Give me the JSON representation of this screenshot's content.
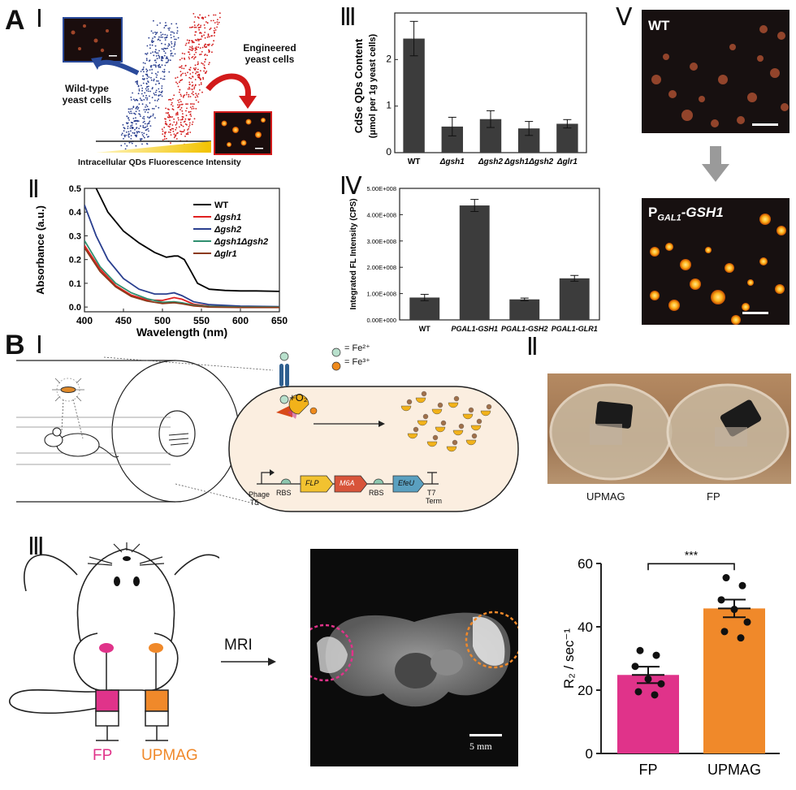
{
  "panels": {
    "A": "A",
    "B": "B",
    "A_I": "Ⅰ",
    "A_II": "Ⅱ",
    "A_III": "Ⅲ",
    "A_IV": "Ⅳ",
    "A_V": "Ⅴ",
    "B_I": "Ⅰ",
    "B_II": "Ⅱ",
    "B_III": "Ⅲ"
  },
  "colors": {
    "wt": "#000000",
    "gsh1": "#e02020",
    "gsh2": "#2a3f8f",
    "gsh1gsh2": "#2f8f6f",
    "glr1": "#8b3a1a",
    "bar_dark": "#3c3c3c",
    "fp": "#e0338a",
    "upmag": "#f0892a",
    "yellow": "#f2c200"
  },
  "flow": {
    "wild_type": "Wild-type\nyeast cells",
    "engineered": "Engineered\nyeast cells",
    "intensity_axis": "Intracellular QDs Fluorescence Intensity"
  },
  "micro": {
    "wt": "WT",
    "pgal_prefix": "P",
    "pgal_sub": "GAL1",
    "pgal_suffix": "-GSH1"
  },
  "schematic": {
    "fe2": "= Fe²⁺",
    "fe3": "= Fe³⁺",
    "o2": "+O₂",
    "phage": "Phage",
    "t5": "T5",
    "rbs1": "RBS",
    "flp": "FLP",
    "m6a": "M6A",
    "rbs2": "RBS",
    "efeu": "EfeU",
    "t7": "T7",
    "term": "Term"
  },
  "photo": {
    "upmag": "UPMAG",
    "fp": "FP"
  },
  "mouse": {
    "fp": "FP",
    "upmag": "UPMAG",
    "mri": "MRI",
    "scale": "5 mm"
  },
  "chart_data": [
    {
      "id": "A-II",
      "type": "line",
      "xlabel": "Wavelength (nm)",
      "ylabel": "Absorbance (a.u.)",
      "xlim": [
        400,
        650
      ],
      "ylim": [
        -0.02,
        0.5
      ],
      "xticks": [
        400,
        450,
        500,
        550,
        600,
        650
      ],
      "yticks": [
        0.0,
        0.1,
        0.2,
        0.3,
        0.4,
        0.5
      ],
      "series": [
        {
          "name": "WT",
          "key": "wt",
          "x": [
            415,
            430,
            450,
            470,
            490,
            505,
            515,
            520,
            528,
            535,
            545,
            560,
            580,
            600,
            620,
            650
          ],
          "y": [
            0.5,
            0.4,
            0.32,
            0.27,
            0.23,
            0.21,
            0.215,
            0.215,
            0.2,
            0.16,
            0.1,
            0.075,
            0.07,
            0.068,
            0.068,
            0.066
          ]
        },
        {
          "name": "Δgsh1",
          "key": "gsh1",
          "x": [
            400,
            420,
            440,
            460,
            480,
            500,
            515,
            525,
            540,
            560,
            600,
            650
          ],
          "y": [
            0.26,
            0.16,
            0.09,
            0.05,
            0.03,
            0.028,
            0.04,
            0.033,
            0.012,
            0.004,
            0.0,
            0.0
          ]
        },
        {
          "name": "Δgsh2",
          "key": "gsh2",
          "x": [
            400,
            415,
            430,
            450,
            470,
            490,
            505,
            515,
            525,
            540,
            560,
            600,
            650
          ],
          "y": [
            0.43,
            0.3,
            0.2,
            0.12,
            0.075,
            0.055,
            0.055,
            0.06,
            0.048,
            0.022,
            0.01,
            0.004,
            0.002
          ]
        },
        {
          "name": "Δgsh1Δgsh2",
          "key": "gsh1gsh2",
          "x": [
            400,
            420,
            440,
            460,
            480,
            500,
            515,
            525,
            540,
            560,
            600,
            650
          ],
          "y": [
            0.28,
            0.17,
            0.1,
            0.06,
            0.035,
            0.02,
            0.022,
            0.018,
            0.008,
            0.003,
            0.0,
            0.0
          ]
        },
        {
          "name": "Δglr1",
          "key": "glr1",
          "x": [
            400,
            420,
            440,
            460,
            480,
            500,
            515,
            525,
            540,
            560,
            600,
            650
          ],
          "y": [
            0.25,
            0.15,
            0.085,
            0.045,
            0.025,
            0.015,
            0.018,
            0.014,
            0.005,
            0.0,
            -0.002,
            -0.002
          ]
        }
      ]
    },
    {
      "id": "A-III",
      "type": "bar",
      "ylabel": "CdSe QDs Content",
      "ylabel2": "(μmol per 1g yeast cells)",
      "categories": [
        "WT",
        "Δgsh1",
        "Δgsh2",
        "Δgsh1Δgsh2",
        "Δglr1"
      ],
      "values": [
        2.45,
        0.56,
        0.72,
        0.52,
        0.62
      ],
      "errors": [
        0.37,
        0.2,
        0.18,
        0.15,
        0.09
      ],
      "ylim": [
        0,
        3
      ],
      "yticks": [
        0,
        1,
        2
      ]
    },
    {
      "id": "A-IV",
      "type": "bar",
      "ylabel": "Integrated FL Intensity (CPS)",
      "categories": [
        "WT",
        "PGAL1-GSH1",
        "PGAL1-GSH2",
        "PGAL1-GLR1"
      ],
      "values": [
        85000000.0,
        435000000.0,
        78000000.0,
        158000000.0
      ],
      "errors": [
        12000000.0,
        23000000.0,
        5000000.0,
        11000000.0
      ],
      "ylim": [
        0,
        500000000.0
      ],
      "yticks": [
        "0.00E+000",
        "1.00E+008",
        "2.00E+008",
        "3.00E+008",
        "4.00E+008",
        "5.00E+008"
      ]
    },
    {
      "id": "B-III",
      "type": "bar",
      "ylabel": "R₂ / sec⁻¹",
      "categories": [
        "FP",
        "UPMAG"
      ],
      "values": [
        24.8,
        45.8
      ],
      "errors": [
        2.6,
        2.8
      ],
      "ylim": [
        0,
        60
      ],
      "yticks": [
        0,
        20,
        40,
        60
      ],
      "significance": "***",
      "points": [
        [
          32.5,
          31.0,
          27.5,
          23.5,
          22.0,
          19.5,
          18.5
        ],
        [
          55.5,
          53.0,
          48.5,
          45.5,
          41.5,
          38.5,
          36.5
        ]
      ]
    }
  ]
}
